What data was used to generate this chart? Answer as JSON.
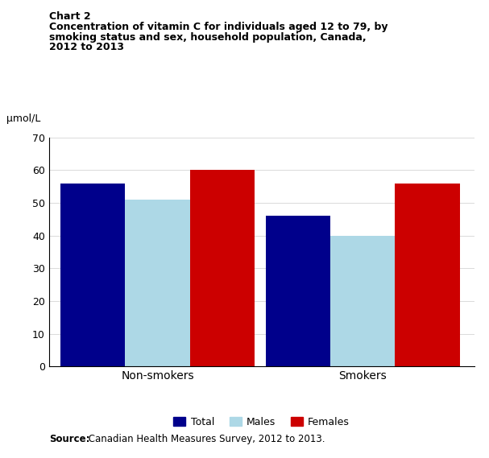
{
  "chart_label": "Chart 2",
  "title_line1": "Concentration of vitamin C for individuals aged 12 to 79, by",
  "title_line2": "smoking status and sex, household population, Canada,",
  "title_line3": "2012 to 2013",
  "ylabel": "μmol/L",
  "source_bold": "Source:",
  "source_normal": " Canadian Health Measures Survey, 2012 to 2013.",
  "categories": [
    "Non-smokers",
    "Smokers"
  ],
  "series": [
    "Total",
    "Males",
    "Females"
  ],
  "values": {
    "Non-smokers": [
      56,
      51,
      60
    ],
    "Smokers": [
      46,
      40,
      56
    ]
  },
  "colors": {
    "Total": "#00008B",
    "Males": "#ADD8E6",
    "Females": "#CC0000"
  },
  "ylim": [
    0,
    70
  ],
  "yticks": [
    0,
    10,
    20,
    30,
    40,
    50,
    60,
    70
  ],
  "bar_width": 0.22,
  "figsize": [
    6.07,
    5.69
  ],
  "dpi": 100,
  "background_color": "#ffffff"
}
